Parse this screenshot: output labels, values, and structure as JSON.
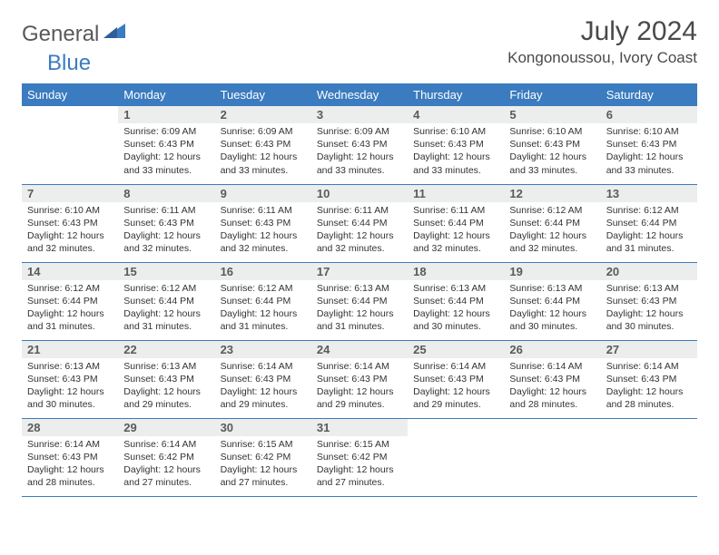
{
  "brand": {
    "part1": "General",
    "part2": "Blue"
  },
  "title": "July 2024",
  "location": "Kongonoussou, Ivory Coast",
  "colors": {
    "header_bg": "#3b7bbf",
    "header_text": "#ffffff",
    "daynum_bg": "#eceded",
    "row_divider": "#3b7bbf",
    "body_text": "#333333",
    "brand_gray": "#58595b",
    "brand_blue": "#3b7bbf"
  },
  "weekdays": [
    "Sunday",
    "Monday",
    "Tuesday",
    "Wednesday",
    "Thursday",
    "Friday",
    "Saturday"
  ],
  "weeks": [
    [
      {
        "empty": true
      },
      {
        "n": "1",
        "sr": "Sunrise: 6:09 AM",
        "ss": "Sunset: 6:43 PM",
        "d1": "Daylight: 12 hours",
        "d2": "and 33 minutes."
      },
      {
        "n": "2",
        "sr": "Sunrise: 6:09 AM",
        "ss": "Sunset: 6:43 PM",
        "d1": "Daylight: 12 hours",
        "d2": "and 33 minutes."
      },
      {
        "n": "3",
        "sr": "Sunrise: 6:09 AM",
        "ss": "Sunset: 6:43 PM",
        "d1": "Daylight: 12 hours",
        "d2": "and 33 minutes."
      },
      {
        "n": "4",
        "sr": "Sunrise: 6:10 AM",
        "ss": "Sunset: 6:43 PM",
        "d1": "Daylight: 12 hours",
        "d2": "and 33 minutes."
      },
      {
        "n": "5",
        "sr": "Sunrise: 6:10 AM",
        "ss": "Sunset: 6:43 PM",
        "d1": "Daylight: 12 hours",
        "d2": "and 33 minutes."
      },
      {
        "n": "6",
        "sr": "Sunrise: 6:10 AM",
        "ss": "Sunset: 6:43 PM",
        "d1": "Daylight: 12 hours",
        "d2": "and 33 minutes."
      }
    ],
    [
      {
        "n": "7",
        "sr": "Sunrise: 6:10 AM",
        "ss": "Sunset: 6:43 PM",
        "d1": "Daylight: 12 hours",
        "d2": "and 32 minutes."
      },
      {
        "n": "8",
        "sr": "Sunrise: 6:11 AM",
        "ss": "Sunset: 6:43 PM",
        "d1": "Daylight: 12 hours",
        "d2": "and 32 minutes."
      },
      {
        "n": "9",
        "sr": "Sunrise: 6:11 AM",
        "ss": "Sunset: 6:43 PM",
        "d1": "Daylight: 12 hours",
        "d2": "and 32 minutes."
      },
      {
        "n": "10",
        "sr": "Sunrise: 6:11 AM",
        "ss": "Sunset: 6:44 PM",
        "d1": "Daylight: 12 hours",
        "d2": "and 32 minutes."
      },
      {
        "n": "11",
        "sr": "Sunrise: 6:11 AM",
        "ss": "Sunset: 6:44 PM",
        "d1": "Daylight: 12 hours",
        "d2": "and 32 minutes."
      },
      {
        "n": "12",
        "sr": "Sunrise: 6:12 AM",
        "ss": "Sunset: 6:44 PM",
        "d1": "Daylight: 12 hours",
        "d2": "and 32 minutes."
      },
      {
        "n": "13",
        "sr": "Sunrise: 6:12 AM",
        "ss": "Sunset: 6:44 PM",
        "d1": "Daylight: 12 hours",
        "d2": "and 31 minutes."
      }
    ],
    [
      {
        "n": "14",
        "sr": "Sunrise: 6:12 AM",
        "ss": "Sunset: 6:44 PM",
        "d1": "Daylight: 12 hours",
        "d2": "and 31 minutes."
      },
      {
        "n": "15",
        "sr": "Sunrise: 6:12 AM",
        "ss": "Sunset: 6:44 PM",
        "d1": "Daylight: 12 hours",
        "d2": "and 31 minutes."
      },
      {
        "n": "16",
        "sr": "Sunrise: 6:12 AM",
        "ss": "Sunset: 6:44 PM",
        "d1": "Daylight: 12 hours",
        "d2": "and 31 minutes."
      },
      {
        "n": "17",
        "sr": "Sunrise: 6:13 AM",
        "ss": "Sunset: 6:44 PM",
        "d1": "Daylight: 12 hours",
        "d2": "and 31 minutes."
      },
      {
        "n": "18",
        "sr": "Sunrise: 6:13 AM",
        "ss": "Sunset: 6:44 PM",
        "d1": "Daylight: 12 hours",
        "d2": "and 30 minutes."
      },
      {
        "n": "19",
        "sr": "Sunrise: 6:13 AM",
        "ss": "Sunset: 6:44 PM",
        "d1": "Daylight: 12 hours",
        "d2": "and 30 minutes."
      },
      {
        "n": "20",
        "sr": "Sunrise: 6:13 AM",
        "ss": "Sunset: 6:43 PM",
        "d1": "Daylight: 12 hours",
        "d2": "and 30 minutes."
      }
    ],
    [
      {
        "n": "21",
        "sr": "Sunrise: 6:13 AM",
        "ss": "Sunset: 6:43 PM",
        "d1": "Daylight: 12 hours",
        "d2": "and 30 minutes."
      },
      {
        "n": "22",
        "sr": "Sunrise: 6:13 AM",
        "ss": "Sunset: 6:43 PM",
        "d1": "Daylight: 12 hours",
        "d2": "and 29 minutes."
      },
      {
        "n": "23",
        "sr": "Sunrise: 6:14 AM",
        "ss": "Sunset: 6:43 PM",
        "d1": "Daylight: 12 hours",
        "d2": "and 29 minutes."
      },
      {
        "n": "24",
        "sr": "Sunrise: 6:14 AM",
        "ss": "Sunset: 6:43 PM",
        "d1": "Daylight: 12 hours",
        "d2": "and 29 minutes."
      },
      {
        "n": "25",
        "sr": "Sunrise: 6:14 AM",
        "ss": "Sunset: 6:43 PM",
        "d1": "Daylight: 12 hours",
        "d2": "and 29 minutes."
      },
      {
        "n": "26",
        "sr": "Sunrise: 6:14 AM",
        "ss": "Sunset: 6:43 PM",
        "d1": "Daylight: 12 hours",
        "d2": "and 28 minutes."
      },
      {
        "n": "27",
        "sr": "Sunrise: 6:14 AM",
        "ss": "Sunset: 6:43 PM",
        "d1": "Daylight: 12 hours",
        "d2": "and 28 minutes."
      }
    ],
    [
      {
        "n": "28",
        "sr": "Sunrise: 6:14 AM",
        "ss": "Sunset: 6:43 PM",
        "d1": "Daylight: 12 hours",
        "d2": "and 28 minutes."
      },
      {
        "n": "29",
        "sr": "Sunrise: 6:14 AM",
        "ss": "Sunset: 6:42 PM",
        "d1": "Daylight: 12 hours",
        "d2": "and 27 minutes."
      },
      {
        "n": "30",
        "sr": "Sunrise: 6:15 AM",
        "ss": "Sunset: 6:42 PM",
        "d1": "Daylight: 12 hours",
        "d2": "and 27 minutes."
      },
      {
        "n": "31",
        "sr": "Sunrise: 6:15 AM",
        "ss": "Sunset: 6:42 PM",
        "d1": "Daylight: 12 hours",
        "d2": "and 27 minutes."
      },
      {
        "empty": true
      },
      {
        "empty": true
      },
      {
        "empty": true
      }
    ]
  ]
}
